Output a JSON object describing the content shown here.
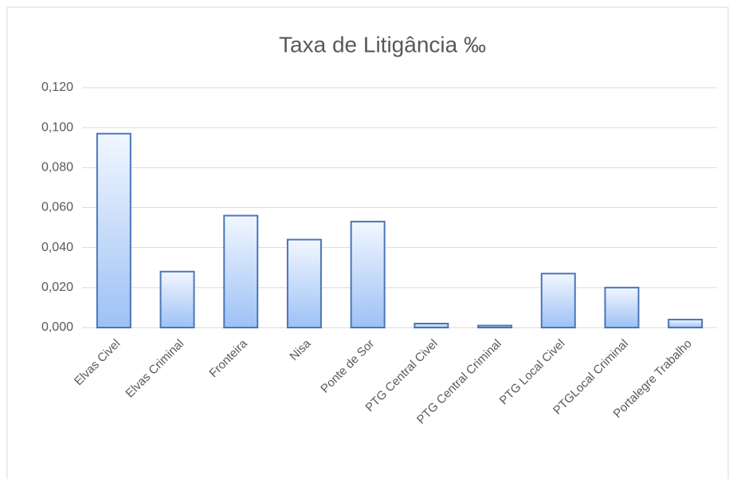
{
  "chart_data": {
    "type": "bar",
    "title": "Taxa de  Litigância ‰",
    "categories": [
      "Elvas Civel",
      "Elvas Criminal",
      "Fronteira",
      "Nisa",
      "Ponte de Sor",
      "PTG Central Civel",
      "PTG Central Criminal",
      "PTG Local Civel",
      "PTGLocal Criminal",
      "Portalegre Trabalho"
    ],
    "values": [
      0.097,
      0.028,
      0.056,
      0.044,
      0.053,
      0.002,
      0.001,
      0.027,
      0.02,
      0.004
    ],
    "color": "#4a76b8",
    "ylim": [
      0,
      0.12
    ],
    "yticks": [
      {
        "value": 0,
        "label": "0,000"
      },
      {
        "value": 0.02,
        "label": "0,020"
      },
      {
        "value": 0.04,
        "label": "0,040"
      },
      {
        "value": 0.06,
        "label": "0,060"
      },
      {
        "value": 0.08,
        "label": "0,080"
      },
      {
        "value": 0.1,
        "label": "0,100"
      },
      {
        "value": 0.12,
        "label": "0,120"
      }
    ],
    "grid": true
  }
}
